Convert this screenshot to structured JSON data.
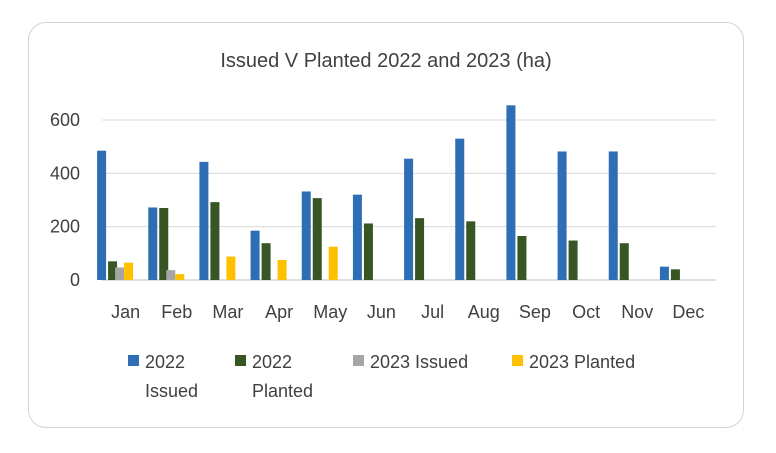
{
  "chart_data": {
    "type": "bar",
    "title": "Issued V Planted 2022 and 2023 (ha)",
    "xlabel": "",
    "ylabel": "",
    "categories": [
      "Jan",
      "Feb",
      "Mar",
      "Apr",
      "May",
      "Jun",
      "Jul",
      "Aug",
      "Sep",
      "Oct",
      "Nov",
      "Dec"
    ],
    "ylim": [
      0,
      650
    ],
    "yticks": [
      0,
      200,
      400,
      600
    ],
    "grid": true,
    "legend_position": "bottom",
    "series": [
      {
        "name": "2022 Issued",
        "color": "#2E6EB5",
        "values": [
          485,
          272,
          443,
          185,
          332,
          320,
          455,
          530,
          655,
          482,
          482,
          50
        ]
      },
      {
        "name": "2022 Planted",
        "color": "#375623",
        "values": [
          70,
          270,
          292,
          138,
          307,
          212,
          232,
          220,
          165,
          148,
          138,
          40
        ]
      },
      {
        "name": "2023 Issued",
        "color": "#A5A5A5",
        "values": [
          47,
          37,
          0,
          0,
          0,
          0,
          0,
          0,
          0,
          0,
          0,
          0
        ]
      },
      {
        "name": "2023 Planted",
        "color": "#FFC000",
        "values": [
          65,
          22,
          88,
          75,
          125,
          0,
          0,
          0,
          0,
          0,
          0,
          0
        ]
      }
    ]
  }
}
